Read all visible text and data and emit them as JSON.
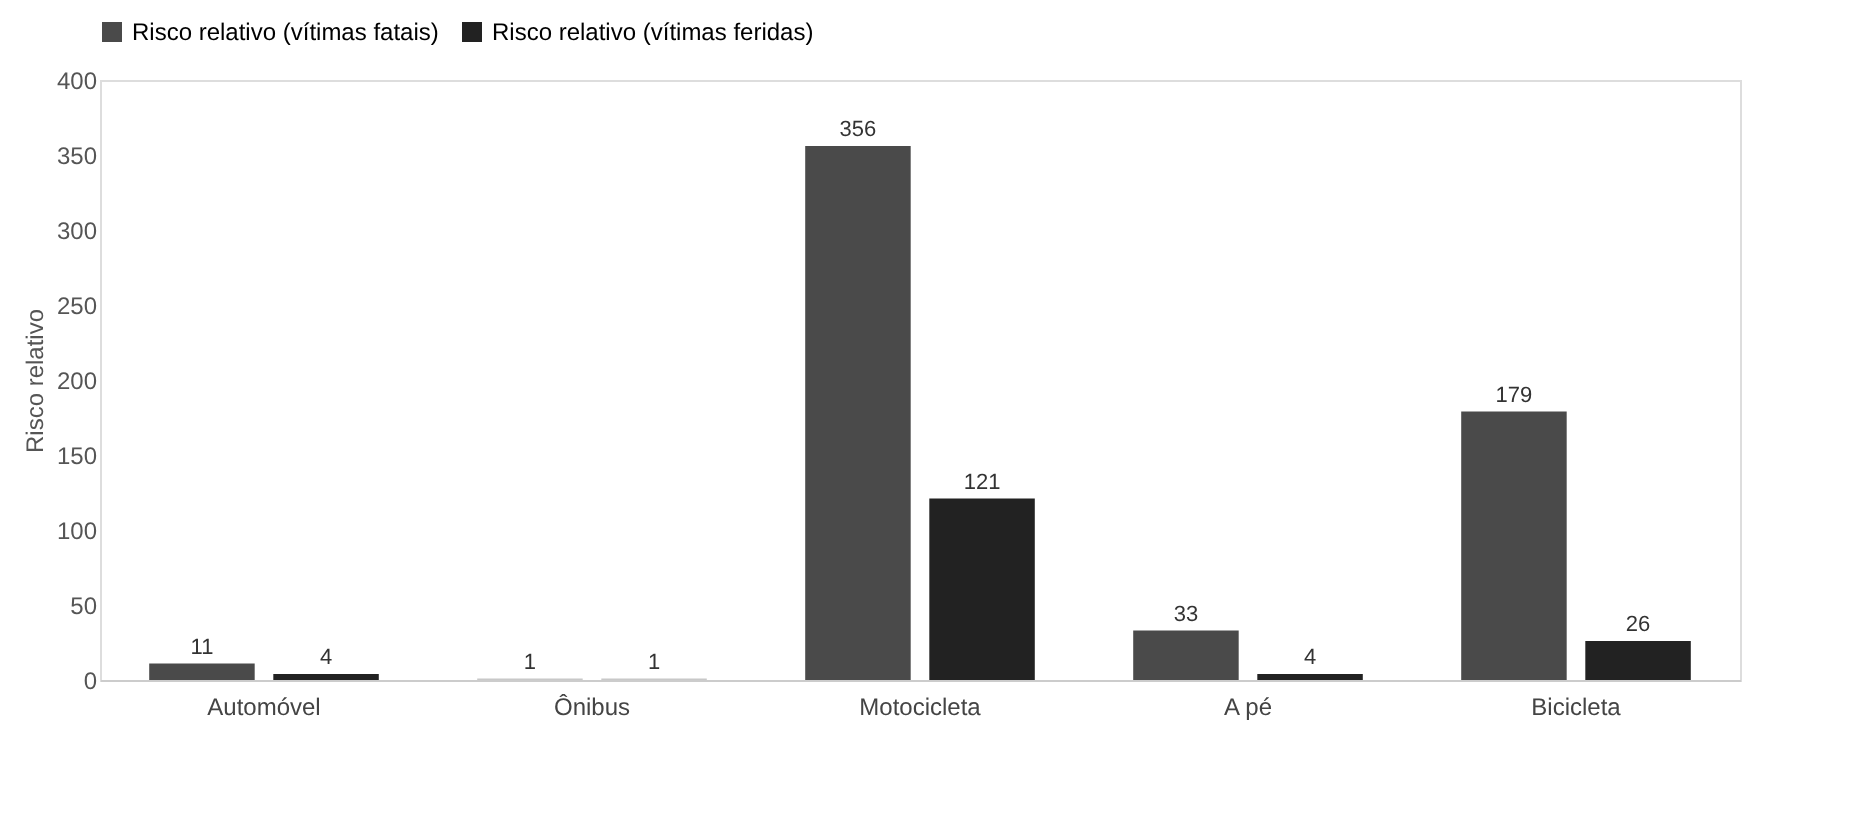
{
  "chart_data": {
    "type": "bar",
    "ylabel": "Risco relativo",
    "categories": [
      "Automóvel",
      "Ônibus",
      "Motocicleta",
      "A pé",
      "Bicicleta"
    ],
    "series": [
      {
        "name": "Risco relativo (vítimas fatais)",
        "color": "#4a4a4a",
        "colors": [
          "#4a4a4a",
          "#c8c8c8",
          "#4a4a4a",
          "#4a4a4a",
          "#4a4a4a"
        ],
        "values": [
          11,
          1,
          356,
          33,
          179
        ]
      },
      {
        "name": "Risco relativo (vítimas feridas)",
        "color": "#222222",
        "colors": [
          "#222222",
          "#c8c8c8",
          "#222222",
          "#222222",
          "#222222"
        ],
        "values": [
          4,
          1,
          121,
          4,
          26
        ]
      }
    ],
    "ylim": [
      0,
      400
    ],
    "yticks": [
      0,
      50,
      100,
      150,
      200,
      250,
      300,
      350,
      400
    ],
    "data_labels": true,
    "legend": "top",
    "grid": false
  }
}
